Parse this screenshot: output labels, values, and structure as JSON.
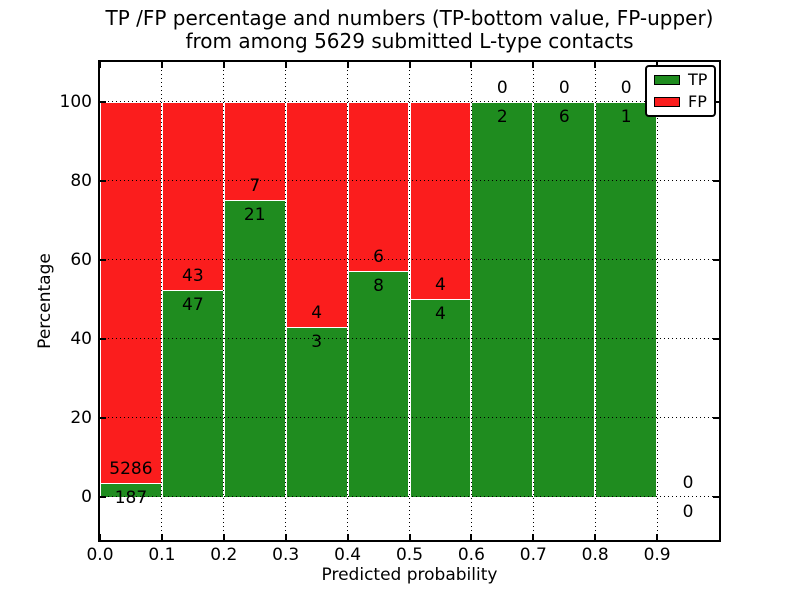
{
  "chart_data": {
    "type": "bar",
    "stacked": true,
    "title_line1": "TP /FP percentage and numbers (TP-bottom value, FP-upper)",
    "title_line2": "from among 5629 submitted L-type contacts",
    "xlabel": "Predicted probability",
    "ylabel": "Percentage",
    "xlim": [
      0.0,
      1.0
    ],
    "ylim": [
      -11,
      110
    ],
    "x_ticks": [
      0.0,
      0.1,
      0.2,
      0.3,
      0.4,
      0.5,
      0.6,
      0.7,
      0.8,
      0.9
    ],
    "x_tick_labels": [
      "0.0",
      "0.1",
      "0.2",
      "0.3",
      "0.4",
      "0.5",
      "0.6",
      "0.7",
      "0.8",
      "0.9"
    ],
    "y_ticks": [
      0,
      20,
      40,
      60,
      80,
      100
    ],
    "y_tick_labels": [
      "0",
      "20",
      "40",
      "60",
      "80",
      "100"
    ],
    "grid": true,
    "grid_style": "dotted",
    "colors": {
      "tp": "#1f8c1f",
      "fp": "#fb1d1d"
    },
    "legend": {
      "position": "upper right",
      "entries": [
        {
          "label": "TP",
          "color": "#1f8c1f"
        },
        {
          "label": "FP",
          "color": "#fb1d1d"
        }
      ]
    },
    "bins": [
      {
        "range": [
          0.0,
          0.1
        ],
        "tp": 187,
        "fp": 5286,
        "tp_pct": 3.42
      },
      {
        "range": [
          0.1,
          0.2
        ],
        "tp": 47,
        "fp": 43,
        "tp_pct": 52.22
      },
      {
        "range": [
          0.2,
          0.3
        ],
        "tp": 21,
        "fp": 7,
        "tp_pct": 75.0
      },
      {
        "range": [
          0.3,
          0.4
        ],
        "tp": 3,
        "fp": 4,
        "tp_pct": 42.86
      },
      {
        "range": [
          0.4,
          0.5
        ],
        "tp": 8,
        "fp": 6,
        "tp_pct": 57.14
      },
      {
        "range": [
          0.5,
          0.6
        ],
        "tp": 4,
        "fp": 4,
        "tp_pct": 50.0
      },
      {
        "range": [
          0.6,
          0.7
        ],
        "tp": 2,
        "fp": 0,
        "tp_pct": 100.0
      },
      {
        "range": [
          0.7,
          0.8
        ],
        "tp": 6,
        "fp": 0,
        "tp_pct": 100.0
      },
      {
        "range": [
          0.8,
          0.9
        ],
        "tp": 1,
        "fp": 0,
        "tp_pct": 100.0
      },
      {
        "range": [
          0.9,
          1.0
        ],
        "tp": 0,
        "fp": 0,
        "tp_pct": null
      }
    ]
  }
}
